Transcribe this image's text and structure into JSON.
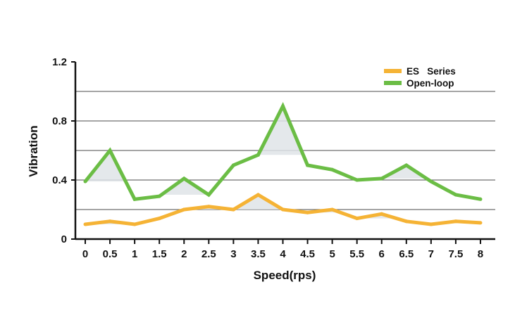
{
  "chart_data": {
    "type": "line",
    "title": "",
    "xlabel": "Speed(rps)",
    "ylabel": "Vibration",
    "x": [
      0,
      0.5,
      1,
      1.5,
      2,
      2.5,
      3,
      3.5,
      4,
      4.5,
      5,
      5.5,
      6,
      6.5,
      7,
      7.5,
      8
    ],
    "x_tick_labels": [
      "0",
      "0.5",
      "1",
      "1.5",
      "2",
      "2.5",
      "3",
      "3.5",
      "4",
      "4.5",
      "5",
      "5.5",
      "6",
      "6.5",
      "7",
      "7.5",
      "8"
    ],
    "xlim": [
      -0.2,
      8.3
    ],
    "ylim": [
      0,
      1.2
    ],
    "y_ticks": [
      0,
      0.4,
      0.8,
      1.2
    ],
    "y_tick_labels": [
      "0",
      "0.4",
      "0.8",
      "1.2"
    ],
    "gridlines_y": [
      0.2,
      0.4,
      0.6,
      0.8,
      1.0
    ],
    "grid": true,
    "legend_position": "top-right",
    "series": [
      {
        "name": "ES   Series",
        "color": "#f5b335",
        "values": [
          0.1,
          0.12,
          0.1,
          0.14,
          0.2,
          0.22,
          0.2,
          0.3,
          0.2,
          0.18,
          0.2,
          0.14,
          0.17,
          0.12,
          0.1,
          0.12,
          0.11
        ]
      },
      {
        "name": "Open-loop",
        "color": "#6bbd45",
        "values": [
          0.39,
          0.6,
          0.27,
          0.29,
          0.41,
          0.3,
          0.5,
          0.57,
          0.9,
          0.5,
          0.47,
          0.4,
          0.41,
          0.5,
          0.39,
          0.3,
          0.27
        ]
      }
    ],
    "shaded_fill_color": "#dfe4e8"
  }
}
